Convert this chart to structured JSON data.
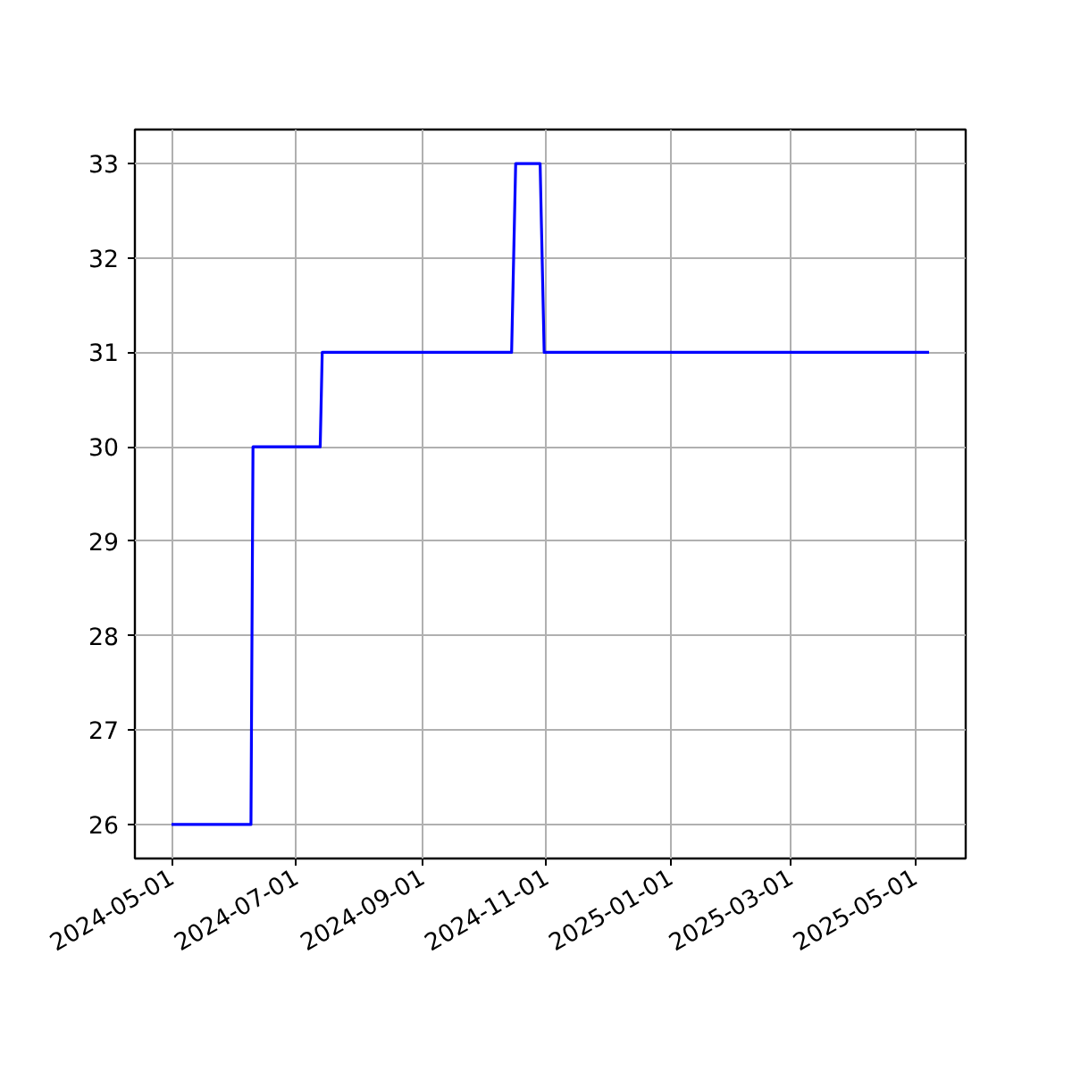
{
  "chart_data": {
    "type": "line",
    "x": [
      "2024-05-01",
      "2024-06-09",
      "2024-06-10",
      "2024-07-13",
      "2024-07-14",
      "2024-10-15",
      "2024-10-17",
      "2024-10-29",
      "2024-10-31",
      "2025-05-08"
    ],
    "series": [
      {
        "color": "#0000ff",
        "values": [
          26,
          26,
          30,
          30,
          31,
          31,
          33,
          33,
          31,
          31
        ]
      }
    ],
    "xlim": [
      "2024-04-13",
      "2025-05-26"
    ],
    "ylim": [
      25.64,
      33.36
    ],
    "xticks": [
      "2024-05-01",
      "2024-07-01",
      "2024-09-01",
      "2024-11-01",
      "2025-01-01",
      "2025-03-01",
      "2025-05-01"
    ],
    "yticks": [
      26,
      27,
      28,
      29,
      30,
      31,
      32,
      33
    ],
    "grid": true,
    "marker": "none",
    "line_style": "solid"
  }
}
